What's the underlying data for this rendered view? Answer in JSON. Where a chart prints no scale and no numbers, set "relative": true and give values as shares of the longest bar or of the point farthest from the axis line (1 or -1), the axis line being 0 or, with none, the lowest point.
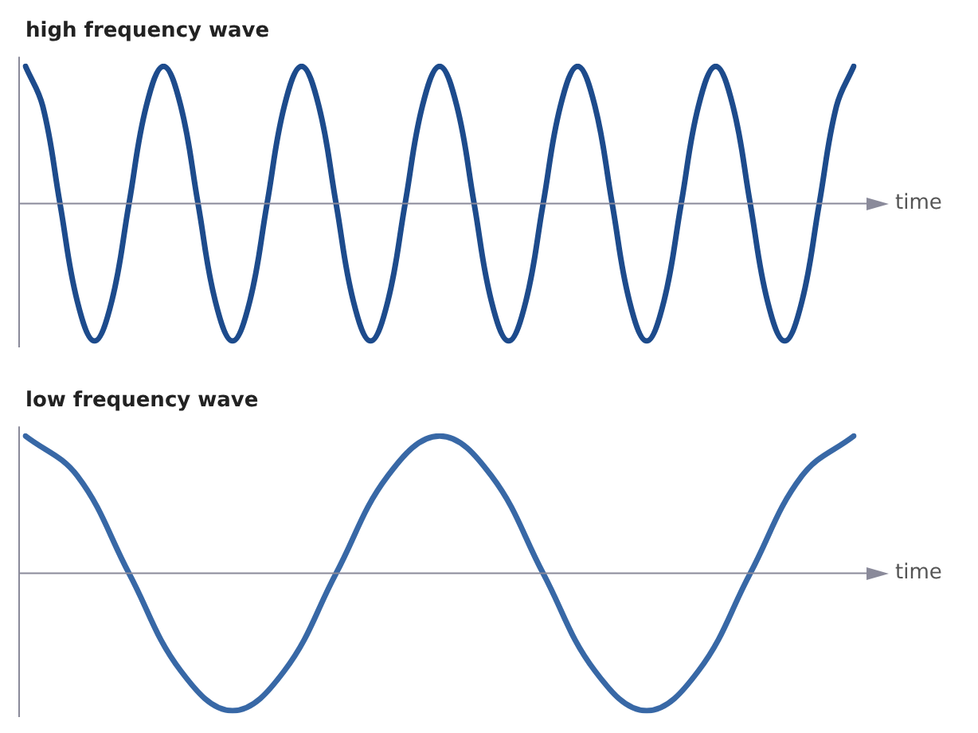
{
  "chart_data": [
    {
      "type": "line",
      "title": "high frequency wave",
      "xlabel": "time",
      "relative": true,
      "legend": false,
      "tick_labels": false,
      "marker": "none",
      "line_style": "solid",
      "categories": [
        null,
        null,
        null,
        null,
        null,
        null,
        null,
        null,
        null,
        null,
        null,
        null,
        null,
        null,
        null,
        null,
        null,
        null,
        null,
        null,
        null,
        null,
        null,
        null,
        null,
        null,
        null,
        null,
        null,
        null,
        null,
        null,
        null,
        null,
        null,
        null,
        null,
        null,
        null,
        null,
        null,
        null,
        null,
        null,
        null,
        null,
        null,
        null,
        null
      ],
      "series": [
        {
          "color": "#1d4b8c",
          "values": [
            1,
            0.71,
            0,
            -0.71,
            -1,
            -0.71,
            0,
            0.71,
            1,
            0.71,
            0,
            -0.71,
            -1,
            -0.71,
            0,
            0.71,
            1,
            0.71,
            0,
            -0.71,
            -1,
            -0.71,
            0,
            0.71,
            1,
            0.71,
            0,
            -0.71,
            -1,
            -0.71,
            0,
            0.71,
            1,
            0.71,
            0,
            -0.71,
            -1,
            -0.71,
            0,
            0.71,
            1,
            0.71,
            0,
            -0.71,
            -1,
            -0.71,
            0,
            0.71,
            1
          ]
        }
      ]
    },
    {
      "type": "line",
      "title": "low frequency wave",
      "xlabel": "time",
      "relative": true,
      "legend": false,
      "tick_labels": false,
      "marker": "none",
      "line_style": "solid",
      "categories": [
        null,
        null,
        null,
        null,
        null,
        null,
        null,
        null,
        null,
        null,
        null,
        null,
        null,
        null,
        null,
        null,
        null
      ],
      "series": [
        {
          "color": "#3868a6",
          "values": [
            1,
            0.71,
            0,
            -0.71,
            -1,
            -0.71,
            0,
            0.71,
            1,
            0.71,
            0,
            -0.71,
            -1,
            -0.71,
            0,
            0.71,
            1
          ]
        }
      ]
    }
  ]
}
